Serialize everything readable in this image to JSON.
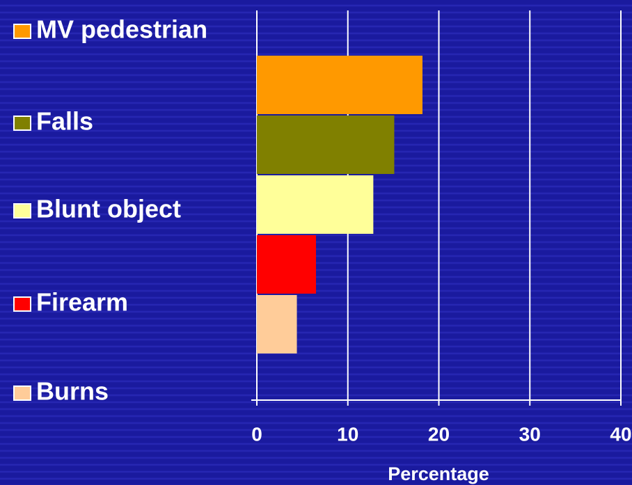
{
  "chart_data": {
    "type": "hbar",
    "series": [
      {
        "name": "MV pedestrian",
        "color": "#ff9900",
        "values": [
          18.2
        ]
      },
      {
        "name": "Falls",
        "color": "#808000",
        "values": [
          15.1
        ]
      },
      {
        "name": "Blunt object",
        "color": "#ffff99",
        "values": [
          12.8
        ]
      },
      {
        "name": "Firearm",
        "color": "#ff0000",
        "values": [
          6.5
        ]
      },
      {
        "name": "Burns",
        "color": "#ffcc99",
        "values": [
          4.4
        ]
      }
    ],
    "xlim": [
      0,
      40
    ],
    "xticks": [
      0,
      10,
      20,
      30,
      40
    ],
    "grid": true,
    "xlabel": "Percentage",
    "legend": "left"
  }
}
